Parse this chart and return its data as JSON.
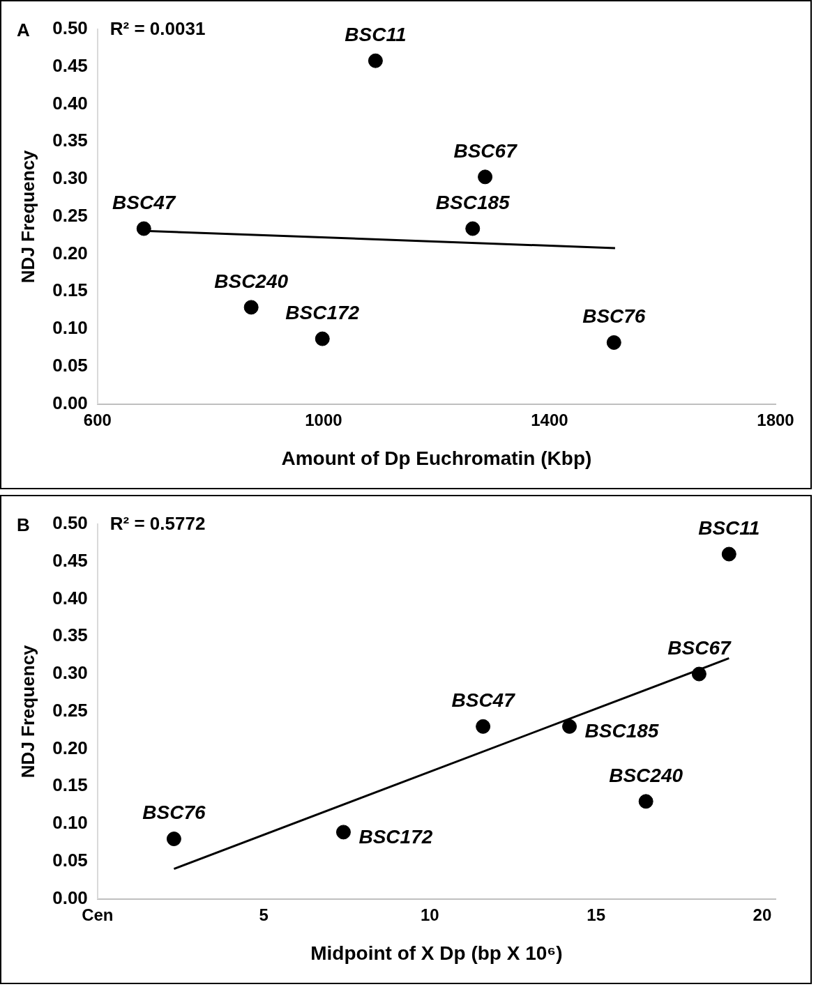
{
  "chart_data": [
    {
      "type": "scatter",
      "xlabel": "Amount of Dp Euchromatin (Kbp)",
      "ylabel": "NDJ Frequency",
      "xlim": [
        600,
        1800
      ],
      "xticks": [
        600,
        1000,
        1400,
        1800
      ],
      "ylim": [
        0,
        0.5
      ],
      "yticks": [
        {
          "value": 0,
          "label": "0.00"
        },
        0.05,
        {
          "value": 0.1,
          "label": "0.10"
        },
        0.15,
        {
          "value": 0.2,
          "label": "0.20"
        },
        0.25,
        {
          "value": 0.3,
          "label": "0.30"
        },
        0.35,
        {
          "value": 0.4,
          "label": "0.40"
        },
        0.45,
        {
          "value": 0.5,
          "label": "0.50"
        }
      ],
      "grid": false,
      "legend": false,
      "series": [
        {
          "type": "scatter",
          "color": "#000000",
          "marker": "circle",
          "x": [
            682,
            872,
            998,
            1092,
            1286,
            1264,
            1514
          ],
          "values": [
            0.234,
            0.129,
            0.087,
            0.458,
            0.303,
            0.234,
            0.082
          ]
        },
        {
          "type": "line",
          "color": "#000000",
          "marker": "none",
          "x": [
            682,
            1516
          ],
          "values": [
            0.231,
            0.208
          ]
        }
      ],
      "annotations": [
        "A",
        "R² = 0.0031",
        {
          "text": "BSC47",
          "x": 682,
          "y": 0.234
        },
        {
          "text": "BSC240",
          "x": 872,
          "y": 0.129
        },
        {
          "text": "BSC172",
          "x": 998,
          "y": 0.087
        },
        {
          "text": "BSC11",
          "x": 1092,
          "y": 0.458
        },
        {
          "text": "BSC67",
          "x": 1286,
          "y": 0.303
        },
        {
          "text": "BSC185",
          "x": 1264,
          "y": 0.234
        },
        {
          "text": "BSC76",
          "x": 1514,
          "y": 0.082
        }
      ]
    },
    {
      "type": "scatter",
      "xlabel": "Midpoint of X Dp (bp X 10⁶)",
      "ylabel": "NDJ Frequency",
      "xlim": [
        0,
        20.4
      ],
      "xticks": [
        {
          "value": 0,
          "label": "Cen"
        },
        5,
        10,
        15,
        20
      ],
      "ylim": [
        0,
        0.5
      ],
      "yticks": [
        {
          "value": 0,
          "label": "0.00"
        },
        0.05,
        {
          "value": 0.1,
          "label": "0.10"
        },
        0.15,
        {
          "value": 0.2,
          "label": "0.20"
        },
        0.25,
        {
          "value": 0.3,
          "label": "0.30"
        },
        0.35,
        {
          "value": 0.4,
          "label": "0.40"
        },
        0.45,
        {
          "value": 0.5,
          "label": "0.50"
        }
      ],
      "grid": false,
      "legend": false,
      "series": [
        {
          "type": "scatter",
          "color": "#000000",
          "marker": "circle",
          "x": [
            2.3,
            7.4,
            11.6,
            14.2,
            16.5,
            18.1,
            19.0
          ],
          "values": [
            0.08,
            0.089,
            0.23,
            0.23,
            0.13,
            0.3,
            0.46
          ]
        },
        {
          "type": "line",
          "color": "#000000",
          "marker": "none",
          "x": [
            2.3,
            19.0
          ],
          "values": [
            0.04,
            0.321
          ]
        }
      ],
      "annotations": [
        "B",
        "R² = 0.5772",
        {
          "text": "BSC76",
          "x": 2.3,
          "y": 0.08
        },
        {
          "text": "BSC172",
          "x": 7.4,
          "y": 0.089
        },
        {
          "text": "BSC47",
          "x": 11.6,
          "y": 0.23
        },
        {
          "text": "BSC185",
          "x": 14.2,
          "y": 0.23
        },
        {
          "text": "BSC240",
          "x": 16.5,
          "y": 0.13
        },
        {
          "text": "BSC67",
          "x": 18.1,
          "y": 0.3
        },
        {
          "text": "BSC11",
          "x": 19.0,
          "y": 0.46
        }
      ]
    }
  ]
}
